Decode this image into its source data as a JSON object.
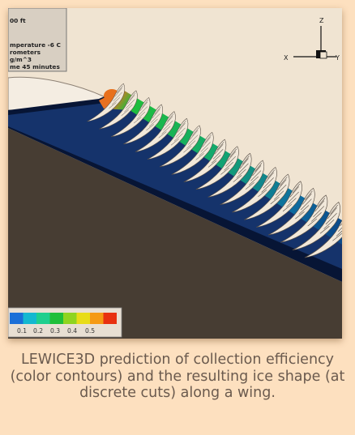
{
  "caption": "LEWICE3D prediction of collection efficiency (color contours) and the resulting ice shape (at discrete cuts) along a wing.",
  "info_box": {
    "lines": [
      "00 ft",
      "",
      "mperature -6 C",
      "rometers",
      "g/m^3",
      "me 45 minutes"
    ]
  },
  "axes_triad": {
    "z_label": "Z",
    "x_label": "X",
    "y_label": "Y"
  },
  "legend": {
    "ticks": [
      "0.1",
      "0.2",
      "0.3",
      "0.4",
      "0.5"
    ],
    "colors": [
      "#1a6fd8",
      "#14b8d0",
      "#1fcf8e",
      "#1fbf3a",
      "#8fd420",
      "#e8dc18",
      "#f59a14",
      "#e83010"
    ]
  },
  "colors": {
    "page_background": "#fde0bf",
    "sky": "#f0e4d2",
    "ground": "#473d33",
    "wing_dark": "#071535",
    "wing_blue": "#1d4f9e",
    "ice": "#f1e8da",
    "caption_text": "#6a5a4e"
  }
}
